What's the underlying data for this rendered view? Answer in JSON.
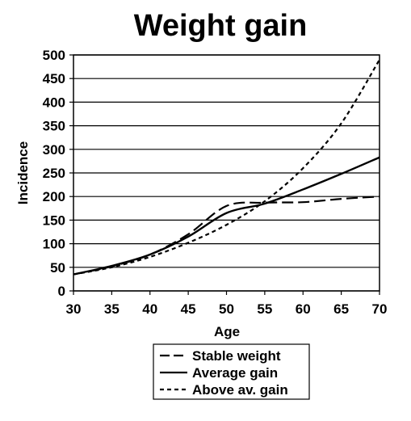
{
  "chart_data": {
    "type": "line",
    "title": "Weight gain",
    "xlabel": "Age",
    "ylabel": "Incidence",
    "xlim": [
      30,
      70
    ],
    "ylim": [
      0,
      500
    ],
    "x_ticks": [
      "30",
      "35",
      "40",
      "45",
      "50",
      "55",
      "60",
      "65",
      "70"
    ],
    "y_ticks": [
      "0",
      "50",
      "100",
      "150",
      "200",
      "250",
      "300",
      "350",
      "400",
      "450",
      "500"
    ],
    "grid": "horizontal",
    "legend_position": "bottom",
    "series": [
      {
        "name": "Stable weight",
        "style": "long-dash",
        "color": "#000000",
        "points": [
          [
            30,
            35
          ],
          [
            35,
            52
          ],
          [
            40,
            77
          ],
          [
            45,
            120
          ],
          [
            50,
            180
          ],
          [
            55,
            187
          ],
          [
            60,
            188
          ],
          [
            65,
            195
          ],
          [
            70,
            200
          ]
        ]
      },
      {
        "name": "Average gain",
        "style": "solid",
        "color": "#000000",
        "points": [
          [
            30,
            35
          ],
          [
            35,
            53
          ],
          [
            40,
            77
          ],
          [
            45,
            115
          ],
          [
            50,
            165
          ],
          [
            55,
            185
          ],
          [
            60,
            215
          ],
          [
            65,
            248
          ],
          [
            70,
            283
          ]
        ]
      },
      {
        "name": "Above av. gain",
        "style": "short-dash",
        "color": "#000000",
        "points": [
          [
            30,
            35
          ],
          [
            35,
            50
          ],
          [
            40,
            72
          ],
          [
            45,
            102
          ],
          [
            50,
            140
          ],
          [
            55,
            190
          ],
          [
            60,
            260
          ],
          [
            65,
            355
          ],
          [
            70,
            490
          ]
        ]
      }
    ]
  }
}
